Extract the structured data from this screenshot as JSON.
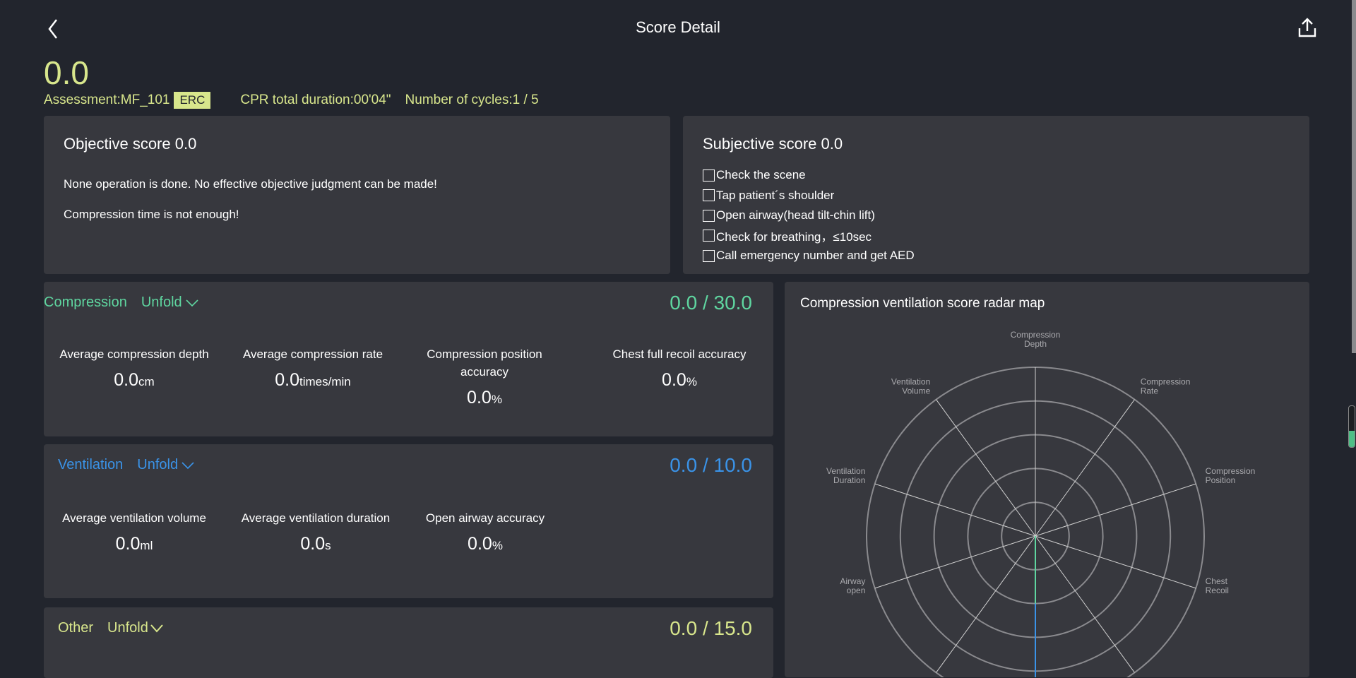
{
  "header": {
    "title": "Score Detail",
    "back_icon": "chevron-left-icon",
    "share_icon": "share-upload-icon"
  },
  "summary": {
    "total_score": "0.0",
    "assessment": "Assessment:MF_101",
    "badge": "ERC",
    "cpr_duration": "CPR total duration:00'04\"",
    "cycles": "Number of cycles:1 / 5"
  },
  "objective": {
    "title": "Objective score 0.0",
    "messages": [
      "None operation is done. No effective objective judgment can be made!",
      "Compression time is not enough!"
    ]
  },
  "subjective": {
    "title": "Subjective score 0.0",
    "items": [
      {
        "label": "Check the scene",
        "checked": false
      },
      {
        "label": "Tap patient´s shoulder",
        "checked": false
      },
      {
        "label": "Open airway(head tilt-chin lift)",
        "checked": false
      },
      {
        "label": "Check for breathing，≤10sec",
        "checked": false
      },
      {
        "label": "Call emergency number and get AED",
        "checked": false
      }
    ]
  },
  "compression": {
    "name": "Compression",
    "unfold": "Unfold",
    "score": "0.0",
    "max": "/ 30.0",
    "color": "#5fd6a0",
    "metrics": [
      {
        "label": "Average compression depth",
        "value": "0.0",
        "unit": "cm"
      },
      {
        "label": "Average compression rate",
        "value": "0.0",
        "unit": "times/min"
      },
      {
        "label": "Compression position accuracy",
        "value": "0.0",
        "unit": "%"
      },
      {
        "label": "Chest full recoil accuracy",
        "value": "0.0",
        "unit": "%"
      }
    ]
  },
  "ventilation": {
    "name": "Ventilation",
    "unfold": "Unfold",
    "score": "0.0",
    "max": "/ 10.0",
    "color": "#3a93e8",
    "metrics": [
      {
        "label": "Average ventilation volume",
        "value": "0.0",
        "unit": "ml"
      },
      {
        "label": "Average ventilation duration",
        "value": "0.0",
        "unit": "s"
      },
      {
        "label": "Open airway accuracy",
        "value": "0.0",
        "unit": "%"
      }
    ]
  },
  "other": {
    "name": "Other",
    "unfold": "Unfold",
    "score": "0.0",
    "max": "/ 15.0",
    "color": "#d8e68c"
  },
  "radar": {
    "title": "Compression ventilation score radar map",
    "chart_data": {
      "type": "radar",
      "axis_count": 10,
      "rings": 5,
      "indicators": [
        {
          "name": "Compression\nDepth",
          "value": 0
        },
        {
          "name": "Compression\nRate",
          "value": 0
        },
        {
          "name": "Compression\nPosition",
          "value": 0
        },
        {
          "name": "Chest\nRecoil",
          "value": 0
        },
        {
          "name": "",
          "value": 0
        },
        {
          "name": "",
          "value": 0
        },
        {
          "name": "",
          "value": 0
        },
        {
          "name": "Airway\nopen",
          "value": 0
        },
        {
          "name": "Ventilation\nDuration",
          "value": 0
        },
        {
          "name": "Ventilation\nVolume",
          "value": 0
        }
      ],
      "series_colors": [
        "#5fd6a0",
        "#3a93e8"
      ]
    }
  },
  "level_indicator": {
    "fill": 0.4,
    "color": "#4fbf86"
  }
}
